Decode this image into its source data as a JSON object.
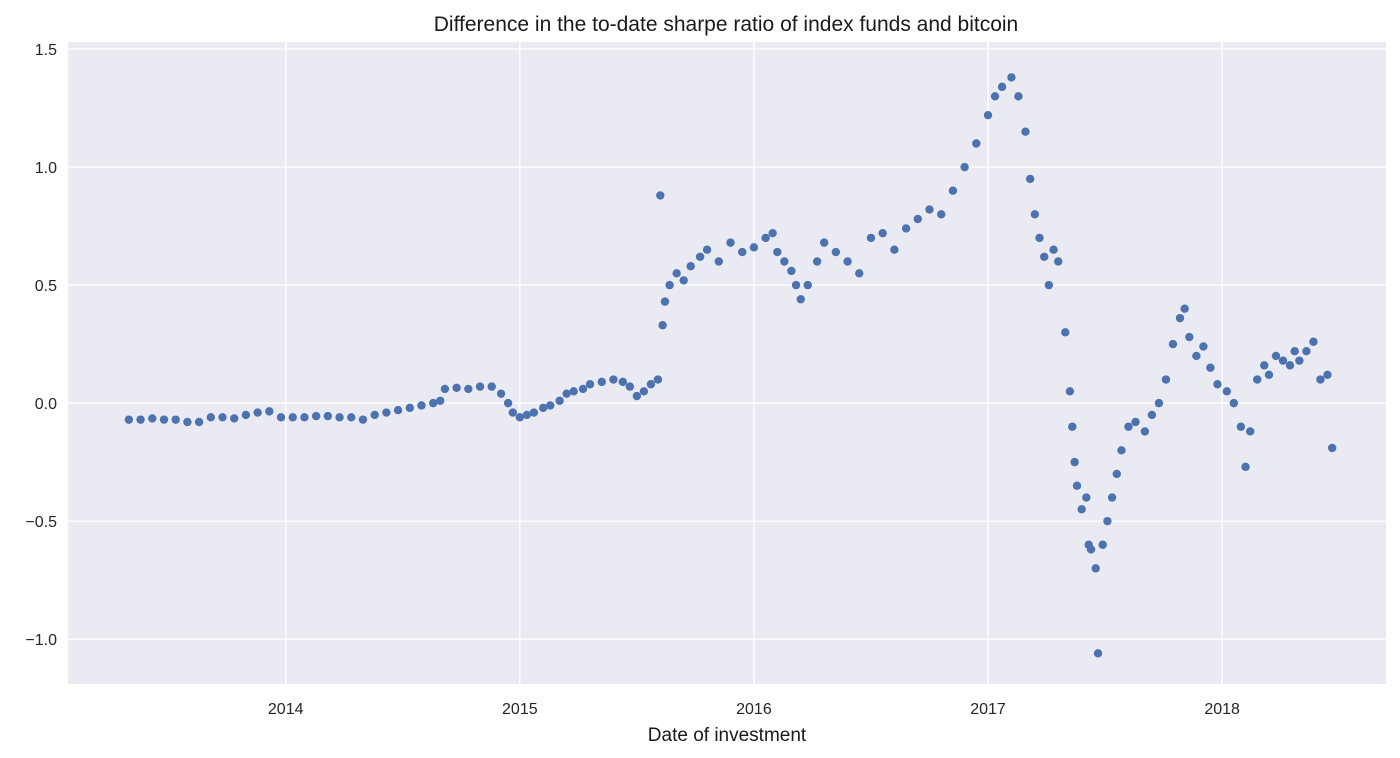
{
  "chart_data": {
    "type": "scatter",
    "title": "Difference in the to-date sharpe ratio of index funds and bitcoin",
    "xlabel": "Date of investment",
    "ylabel": "",
    "xlim": [
      2013.07,
      2018.7
    ],
    "ylim": [
      -1.19,
      1.53
    ],
    "x_ticks": [
      2014,
      2015,
      2016,
      2017,
      2018
    ],
    "x_tick_labels": [
      "2014",
      "2015",
      "2016",
      "2017",
      "2018"
    ],
    "y_ticks": [
      -1.0,
      -0.5,
      0.0,
      0.5,
      1.0,
      1.5
    ],
    "y_tick_labels": [
      "−1.0",
      "−0.5",
      "0.0",
      "0.5",
      "1.0",
      "1.5"
    ],
    "grid": true,
    "marker_color": "#4c72b0",
    "background_color": "#eaeaf2",
    "series": [
      {
        "name": "sharpe_difference",
        "points": [
          [
            2013.33,
            -0.07
          ],
          [
            2013.38,
            -0.07
          ],
          [
            2013.43,
            -0.065
          ],
          [
            2013.48,
            -0.07
          ],
          [
            2013.53,
            -0.07
          ],
          [
            2013.58,
            -0.08
          ],
          [
            2013.63,
            -0.08
          ],
          [
            2013.68,
            -0.06
          ],
          [
            2013.73,
            -0.06
          ],
          [
            2013.78,
            -0.065
          ],
          [
            2013.83,
            -0.05
          ],
          [
            2013.88,
            -0.04
          ],
          [
            2013.93,
            -0.035
          ],
          [
            2013.98,
            -0.06
          ],
          [
            2014.03,
            -0.06
          ],
          [
            2014.08,
            -0.06
          ],
          [
            2014.13,
            -0.055
          ],
          [
            2014.18,
            -0.055
          ],
          [
            2014.23,
            -0.06
          ],
          [
            2014.28,
            -0.06
          ],
          [
            2014.33,
            -0.07
          ],
          [
            2014.38,
            -0.05
          ],
          [
            2014.43,
            -0.04
          ],
          [
            2014.48,
            -0.03
          ],
          [
            2014.53,
            -0.02
          ],
          [
            2014.58,
            -0.01
          ],
          [
            2014.63,
            0.0
          ],
          [
            2014.66,
            0.01
          ],
          [
            2014.68,
            0.06
          ],
          [
            2014.73,
            0.065
          ],
          [
            2014.78,
            0.06
          ],
          [
            2014.83,
            0.07
          ],
          [
            2014.88,
            0.07
          ],
          [
            2014.92,
            0.04
          ],
          [
            2014.95,
            0.0
          ],
          [
            2014.97,
            -0.04
          ],
          [
            2015.0,
            -0.06
          ],
          [
            2015.03,
            -0.05
          ],
          [
            2015.06,
            -0.04
          ],
          [
            2015.1,
            -0.02
          ],
          [
            2015.13,
            -0.01
          ],
          [
            2015.17,
            0.01
          ],
          [
            2015.2,
            0.04
          ],
          [
            2015.23,
            0.05
          ],
          [
            2015.27,
            0.06
          ],
          [
            2015.3,
            0.08
          ],
          [
            2015.35,
            0.09
          ],
          [
            2015.4,
            0.1
          ],
          [
            2015.44,
            0.09
          ],
          [
            2015.47,
            0.07
          ],
          [
            2015.5,
            0.03
          ],
          [
            2015.53,
            0.05
          ],
          [
            2015.56,
            0.08
          ],
          [
            2015.59,
            0.1
          ],
          [
            2015.6,
            0.88
          ],
          [
            2015.61,
            0.33
          ],
          [
            2015.62,
            0.43
          ],
          [
            2015.64,
            0.5
          ],
          [
            2015.67,
            0.55
          ],
          [
            2015.7,
            0.52
          ],
          [
            2015.73,
            0.58
          ],
          [
            2015.77,
            0.62
          ],
          [
            2015.8,
            0.65
          ],
          [
            2015.85,
            0.6
          ],
          [
            2015.9,
            0.68
          ],
          [
            2015.95,
            0.64
          ],
          [
            2016.0,
            0.66
          ],
          [
            2016.05,
            0.7
          ],
          [
            2016.08,
            0.72
          ],
          [
            2016.1,
            0.64
          ],
          [
            2016.13,
            0.6
          ],
          [
            2016.16,
            0.56
          ],
          [
            2016.18,
            0.5
          ],
          [
            2016.2,
            0.44
          ],
          [
            2016.23,
            0.5
          ],
          [
            2016.27,
            0.6
          ],
          [
            2016.3,
            0.68
          ],
          [
            2016.35,
            0.64
          ],
          [
            2016.4,
            0.6
          ],
          [
            2016.45,
            0.55
          ],
          [
            2016.5,
            0.7
          ],
          [
            2016.55,
            0.72
          ],
          [
            2016.6,
            0.65
          ],
          [
            2016.65,
            0.74
          ],
          [
            2016.7,
            0.78
          ],
          [
            2016.75,
            0.82
          ],
          [
            2016.8,
            0.8
          ],
          [
            2016.85,
            0.9
          ],
          [
            2016.9,
            1.0
          ],
          [
            2016.95,
            1.1
          ],
          [
            2017.0,
            1.22
          ],
          [
            2017.03,
            1.3
          ],
          [
            2017.06,
            1.34
          ],
          [
            2017.1,
            1.38
          ],
          [
            2017.13,
            1.3
          ],
          [
            2017.16,
            1.15
          ],
          [
            2017.18,
            0.95
          ],
          [
            2017.2,
            0.8
          ],
          [
            2017.22,
            0.7
          ],
          [
            2017.24,
            0.62
          ],
          [
            2017.26,
            0.5
          ],
          [
            2017.28,
            0.65
          ],
          [
            2017.3,
            0.6
          ],
          [
            2017.33,
            0.3
          ],
          [
            2017.35,
            0.05
          ],
          [
            2017.36,
            -0.1
          ],
          [
            2017.37,
            -0.25
          ],
          [
            2017.38,
            -0.35
          ],
          [
            2017.4,
            -0.45
          ],
          [
            2017.42,
            -0.4
          ],
          [
            2017.43,
            -0.6
          ],
          [
            2017.44,
            -0.62
          ],
          [
            2017.46,
            -0.7
          ],
          [
            2017.47,
            -1.06
          ],
          [
            2017.49,
            -0.6
          ],
          [
            2017.51,
            -0.5
          ],
          [
            2017.53,
            -0.4
          ],
          [
            2017.55,
            -0.3
          ],
          [
            2017.57,
            -0.2
          ],
          [
            2017.6,
            -0.1
          ],
          [
            2017.63,
            -0.08
          ],
          [
            2017.67,
            -0.12
          ],
          [
            2017.7,
            -0.05
          ],
          [
            2017.73,
            0.0
          ],
          [
            2017.76,
            0.1
          ],
          [
            2017.79,
            0.25
          ],
          [
            2017.82,
            0.36
          ],
          [
            2017.84,
            0.4
          ],
          [
            2017.86,
            0.28
          ],
          [
            2017.89,
            0.2
          ],
          [
            2017.92,
            0.24
          ],
          [
            2017.95,
            0.15
          ],
          [
            2017.98,
            0.08
          ],
          [
            2018.02,
            0.05
          ],
          [
            2018.05,
            0.0
          ],
          [
            2018.08,
            -0.1
          ],
          [
            2018.1,
            -0.27
          ],
          [
            2018.12,
            -0.12
          ],
          [
            2018.15,
            0.1
          ],
          [
            2018.18,
            0.16
          ],
          [
            2018.2,
            0.12
          ],
          [
            2018.23,
            0.2
          ],
          [
            2018.26,
            0.18
          ],
          [
            2018.29,
            0.16
          ],
          [
            2018.31,
            0.22
          ],
          [
            2018.33,
            0.18
          ],
          [
            2018.36,
            0.22
          ],
          [
            2018.39,
            0.26
          ],
          [
            2018.42,
            0.1
          ],
          [
            2018.45,
            0.12
          ],
          [
            2018.47,
            -0.19
          ]
        ]
      }
    ]
  }
}
